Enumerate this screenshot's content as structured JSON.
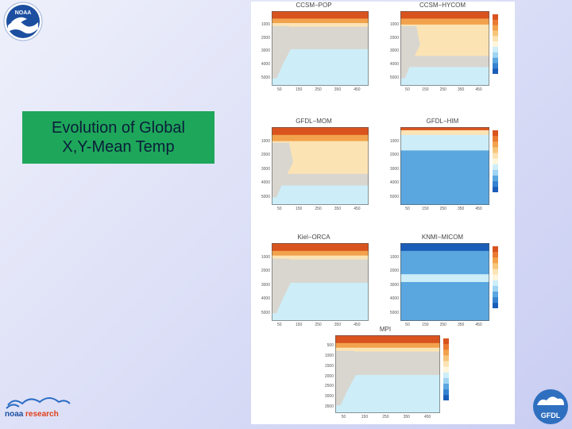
{
  "slide": {
    "title_line1": "Evolution of Global",
    "title_line2": "X,Y-Mean Temp"
  },
  "logos": {
    "noaa_text": "NOAA",
    "research_text_a": "noaa",
    "research_text_b": "research",
    "gfdl_text": "GFDL"
  },
  "panels": [
    {
      "id": "ccsm-pop",
      "title": "CCSM−POP",
      "y_ticks": [
        "1000",
        "2000",
        "3000",
        "4000",
        "5000"
      ],
      "x_ticks": [
        "50",
        "150",
        "250",
        "350",
        "450"
      ],
      "scheme": "warm-grey"
    },
    {
      "id": "ccsm-hycom",
      "title": "CCSM−HYCOM",
      "y_ticks": [
        "1000",
        "2000",
        "3000",
        "4000",
        "5000"
      ],
      "x_ticks": [
        "50",
        "150",
        "250",
        "350",
        "450"
      ],
      "scheme": "warm-cream"
    },
    {
      "id": "gfdl-mom",
      "title": "GFDL−MOM",
      "y_ticks": [
        "1000",
        "2000",
        "3000",
        "4000",
        "5000"
      ],
      "x_ticks": [
        "50",
        "150",
        "250",
        "350",
        "450"
      ],
      "scheme": "warm-cream"
    },
    {
      "id": "gfdl-him",
      "title": "GFDL−HIM",
      "y_ticks": [
        "1000",
        "2000",
        "3000",
        "4000",
        "5000"
      ],
      "x_ticks": [
        "50",
        "150",
        "250",
        "350",
        "450"
      ],
      "scheme": "cool-blue"
    },
    {
      "id": "kiel-orca",
      "title": "Kiel−ORCA",
      "y_ticks": [
        "1000",
        "2000",
        "3000",
        "4000",
        "5000"
      ],
      "x_ticks": [
        "50",
        "150",
        "250",
        "350",
        "450"
      ],
      "scheme": "warm-grey"
    },
    {
      "id": "knmi-micom",
      "title": "KNMI−MICOM",
      "y_ticks": [
        "1000",
        "2000",
        "3000",
        "4000",
        "5000"
      ],
      "x_ticks": [
        "50",
        "150",
        "250",
        "350",
        "450"
      ],
      "scheme": "deep-blue"
    },
    {
      "id": "mpi",
      "title": "MPI",
      "y_ticks": [
        "500",
        "1000",
        "1500",
        "2000",
        "2500",
        "3000",
        "3500"
      ],
      "x_ticks": [
        "50",
        "150",
        "250",
        "350",
        "450"
      ],
      "scheme": "warm-grey"
    }
  ],
  "colors": {
    "slide_bg": "#d8dbf5",
    "title_box": "#1ea75a",
    "warm_dark": "#d9531e",
    "warm_mid": "#f2a24c",
    "warm_light": "#fbe3b4",
    "grey": "#d9d6d0",
    "light_blue": "#cdeef8",
    "mid_blue": "#5aa7e0",
    "dark_blue": "#1a5db8"
  }
}
